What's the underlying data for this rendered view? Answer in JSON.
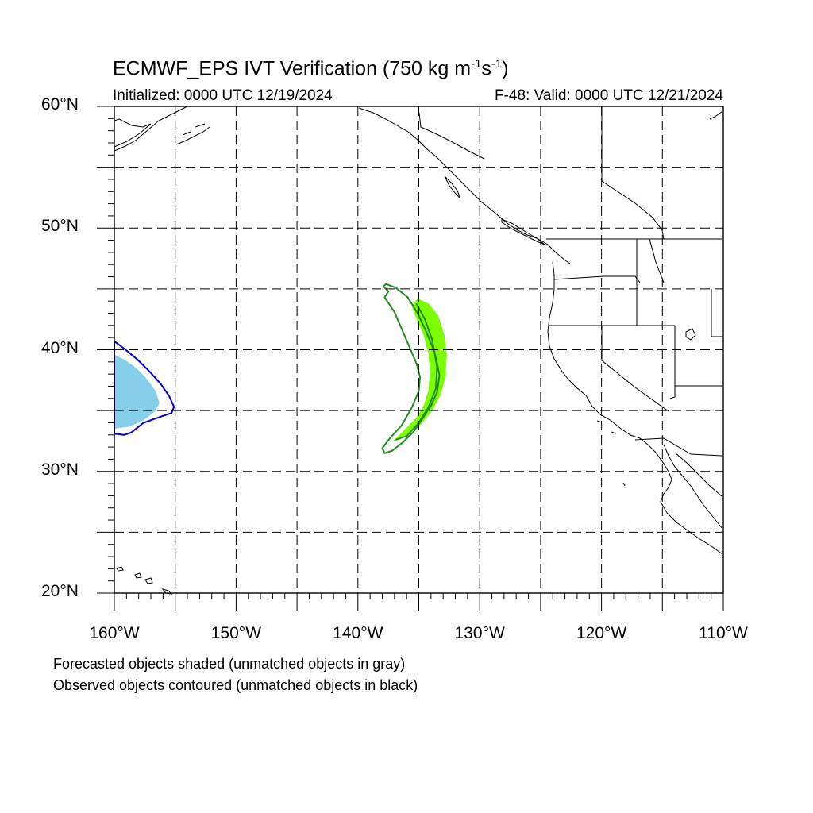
{
  "title": {
    "main": "ECMWF_EPS IVT Verification (750 kg m",
    "exp1": "-1",
    "mid": "s",
    "exp2": "-1",
    "end": ")"
  },
  "subtitle_left": "Initialized: 0000 UTC 12/19/2024",
  "subtitle_right": "F-48: Valid: 0000 UTC 12/21/2024",
  "map": {
    "projection": "cylindrical-equidistant",
    "lon_range": [
      -160,
      -110
    ],
    "lat_range": [
      20,
      60
    ],
    "grid": "dashed every 5 degrees",
    "lat_labels": [
      {
        "lat": 60,
        "text": "60°N"
      },
      {
        "lat": 50,
        "text": "50°N"
      },
      {
        "lat": 40,
        "text": "40°N"
      },
      {
        "lat": 30,
        "text": "30°N"
      },
      {
        "lat": 20,
        "text": "20°N"
      }
    ],
    "lon_labels": [
      {
        "lon": -160,
        "text": "160°W"
      },
      {
        "lon": -150,
        "text": "150°W"
      },
      {
        "lon": -140,
        "text": "140°W"
      },
      {
        "lon": -130,
        "text": "130°W"
      },
      {
        "lon": -120,
        "text": "120°W"
      },
      {
        "lon": -110,
        "text": "110°W"
      }
    ],
    "objects": [
      {
        "id": "forecast-west",
        "kind": "forecast-shaded",
        "color": "#87ceeb",
        "polygon": [
          [
            -160,
            39.6
          ],
          [
            -159.2,
            39.2
          ],
          [
            -158.3,
            38.6
          ],
          [
            -157.4,
            37.7
          ],
          [
            -156.6,
            36.6
          ],
          [
            -156.3,
            35.6
          ],
          [
            -156.7,
            34.9
          ],
          [
            -157.6,
            34.2
          ],
          [
            -158.7,
            33.7
          ],
          [
            -160,
            33.5
          ]
        ]
      },
      {
        "id": "observed-west",
        "kind": "observed-contour",
        "color": "#0000cd",
        "polygon": [
          [
            -160,
            40.7
          ],
          [
            -159.2,
            40.1
          ],
          [
            -158.1,
            39.2
          ],
          [
            -157.1,
            38.2
          ],
          [
            -156.2,
            37.2
          ],
          [
            -155.5,
            36.2
          ],
          [
            -155.1,
            35.3
          ],
          [
            -155.3,
            34.8
          ],
          [
            -156.2,
            34.5
          ],
          [
            -157.6,
            34.0
          ],
          [
            -158.6,
            33.2
          ],
          [
            -159.2,
            33.0
          ],
          [
            -160,
            33.1
          ]
        ]
      },
      {
        "id": "forecast-central",
        "kind": "forecast-shaded",
        "color": "#7cfc00",
        "polygon": [
          [
            -135.1,
            44.2
          ],
          [
            -134.2,
            43.8
          ],
          [
            -133.4,
            42.8
          ],
          [
            -132.9,
            41.2
          ],
          [
            -132.7,
            39.6
          ],
          [
            -132.8,
            37.8
          ],
          [
            -133.2,
            36.3
          ],
          [
            -133.9,
            35.0
          ],
          [
            -134.8,
            33.9
          ],
          [
            -135.8,
            33.1
          ],
          [
            -136.6,
            32.6
          ],
          [
            -137.1,
            32.5
          ],
          [
            -136.3,
            33.3
          ],
          [
            -135.2,
            34.4
          ],
          [
            -134.6,
            35.4
          ],
          [
            -134.2,
            36.7
          ],
          [
            -134.1,
            38.2
          ],
          [
            -134.2,
            39.6
          ],
          [
            -134.6,
            41.2
          ],
          [
            -135.2,
            42.6
          ],
          [
            -135.6,
            43.6
          ]
        ]
      },
      {
        "id": "observed-central",
        "kind": "observed-contour",
        "color": "#228b22",
        "polygon": [
          [
            -137.7,
            45.4
          ],
          [
            -136.9,
            45.1
          ],
          [
            -135.9,
            44.3
          ],
          [
            -135.1,
            43.0
          ],
          [
            -134.4,
            41.5
          ],
          [
            -133.7,
            39.8
          ],
          [
            -133.3,
            37.9
          ],
          [
            -133.5,
            36.5
          ],
          [
            -134.0,
            35.4
          ],
          [
            -134.6,
            34.5
          ],
          [
            -135.4,
            33.3
          ],
          [
            -136.3,
            32.4
          ],
          [
            -137.2,
            31.7
          ],
          [
            -137.8,
            31.5
          ],
          [
            -138.0,
            31.9
          ],
          [
            -137.4,
            32.7
          ],
          [
            -136.4,
            33.8
          ],
          [
            -135.6,
            35.2
          ],
          [
            -135.0,
            36.6
          ],
          [
            -134.9,
            37.8
          ],
          [
            -135.2,
            38.9
          ],
          [
            -135.8,
            40.3
          ],
          [
            -136.4,
            41.7
          ],
          [
            -137.0,
            43.1
          ],
          [
            -137.8,
            44.3
          ],
          [
            -137.5,
            44.8
          ],
          [
            -137.9,
            45.2
          ]
        ]
      },
      {
        "id": "observed-axis",
        "kind": "observed-contour-inner",
        "color": "#228b22",
        "polyline": [
          [
            -135.2,
            43.8
          ],
          [
            -134.5,
            42.5
          ],
          [
            -133.9,
            40.8
          ],
          [
            -133.5,
            38.6
          ],
          [
            -133.6,
            36.8
          ],
          [
            -134.2,
            35.3
          ],
          [
            -135.0,
            34.0
          ],
          [
            -136.0,
            32.9
          ],
          [
            -136.9,
            32.6
          ]
        ]
      }
    ]
  },
  "notes": [
    "Forecasted objects shaded (unmatched objects in gray)",
    "Observed objects contoured (unmatched objects in black)"
  ],
  "colors": {
    "forecast_shade_west": "#87ceeb",
    "forecast_shade_central": "#7cfc00",
    "observed_contour_west": "#0000cd",
    "observed_contour_central": "#228b22",
    "grid": "#000000"
  }
}
